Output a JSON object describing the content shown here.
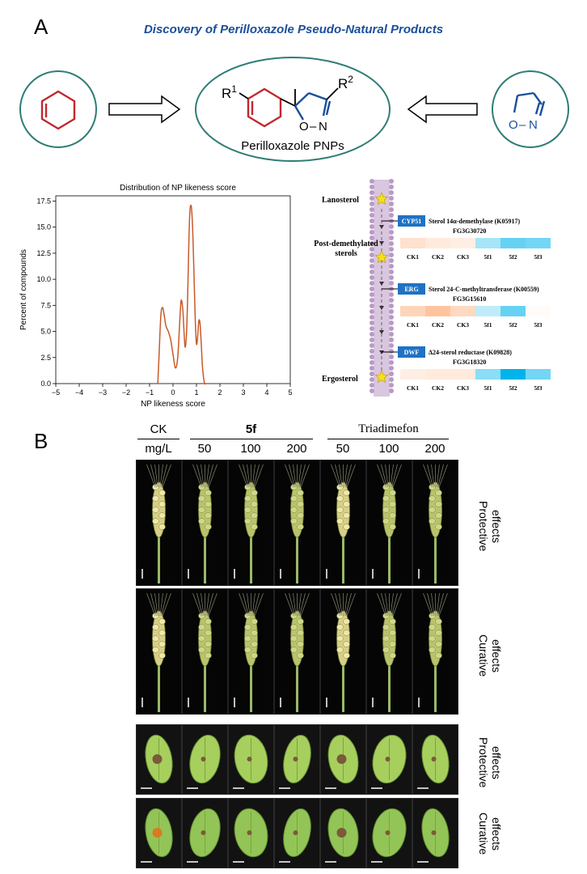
{
  "panel_a": {
    "letter": "A",
    "title": "Discovery of Perilloxazole Pseudo-Natural Products",
    "center_label": "Perilloxazole PNPs",
    "r1": "R",
    "r1_sup": "1",
    "r2": "R",
    "r2_sup": "2",
    "atom_o": "O",
    "atom_n": "N",
    "atom_dash": "–",
    "colors": {
      "cyclohexene": "#c0282d",
      "isoxazoline": "#1a4f9a",
      "circle": "#2e7d76"
    }
  },
  "chart_data": {
    "type": "line",
    "title": "Distribution of NP likeness score",
    "xlabel": "NP likeness score",
    "ylabel": "Percent of compounds",
    "xlim": [
      -5,
      5
    ],
    "ylim": [
      0,
      18
    ],
    "xticks": [
      "−5",
      "−4",
      "−3",
      "−2",
      "−1",
      "0",
      "1",
      "2",
      "3",
      "4",
      "5"
    ],
    "yticks": [
      "0.0",
      "2.5",
      "5.0",
      "7.5",
      "10.0",
      "12.5",
      "15.0",
      "17.5"
    ],
    "series": [
      {
        "color": "#c85a2a",
        "x": [
          -0.65,
          -0.6,
          -0.52,
          -0.45,
          -0.38,
          -0.3,
          -0.2,
          -0.1,
          0.0,
          0.1,
          0.2,
          0.3,
          0.35,
          0.42,
          0.48,
          0.52,
          0.58,
          0.63,
          0.68,
          0.72,
          0.76,
          0.8,
          0.85,
          0.9,
          0.95,
          1.0,
          1.05,
          1.1,
          1.15,
          1.2,
          1.25,
          1.3,
          1.35,
          1.4,
          1.45,
          1.5,
          1.55
        ],
        "y": [
          0.0,
          2.5,
          6.5,
          7.3,
          6.6,
          5.5,
          5.0,
          4.2,
          2.8,
          1.5,
          2.5,
          6.5,
          8.0,
          7.0,
          4.5,
          3.5,
          5.0,
          9.0,
          14.0,
          16.5,
          17.1,
          16.5,
          14.0,
          10.0,
          6.0,
          3.8,
          4.5,
          6.0,
          5.8,
          4.0,
          1.8,
          0.6,
          0.0,
          0.0,
          0.0,
          0.0,
          0.0
        ]
      }
    ]
  },
  "pathway": {
    "metabolites": [
      "Lanosterol",
      "Post-demethylated sterols",
      "Ergosterol"
    ],
    "heatmap_columns": [
      "CK1",
      "CK2",
      "CK3",
      "5f1",
      "5f2",
      "5f3"
    ],
    "genes": [
      {
        "tag": "CYP51",
        "name": "Sterol 14α-demethylase (K05917)",
        "id": "FG3G30720",
        "values": [
          0.35,
          0.25,
          0.2,
          -0.35,
          -0.6,
          -0.55
        ]
      },
      {
        "tag": "ERG",
        "name": "Sterol 24-C-methyltransferase (K00559)",
        "id": "FG3G15610",
        "values": [
          0.5,
          0.7,
          0.45,
          -0.25,
          -0.6,
          0.05
        ]
      },
      {
        "tag": "DWF",
        "name": "Δ24-sterol reductase (K09828)",
        "id": "FG3G18320",
        "values": [
          0.2,
          0.25,
          0.25,
          -0.45,
          -1.0,
          -0.55
        ]
      }
    ],
    "colors": {
      "tag_bg": "#1f72c4",
      "membrane": "#b89ac4",
      "star": "#f7e017"
    }
  },
  "panel_b": {
    "letter": "B",
    "headers": {
      "ck": "CK",
      "unit": "mg/L",
      "compound": "5f",
      "reference": "Triadimefon"
    },
    "doses": [
      "50",
      "100",
      "200",
      "50",
      "100",
      "200"
    ],
    "row_labels": [
      [
        "Protective",
        "effects"
      ],
      [
        "Curative",
        "effects"
      ],
      [
        "Protective",
        "effects"
      ],
      [
        "Curative",
        "effects"
      ]
    ]
  }
}
